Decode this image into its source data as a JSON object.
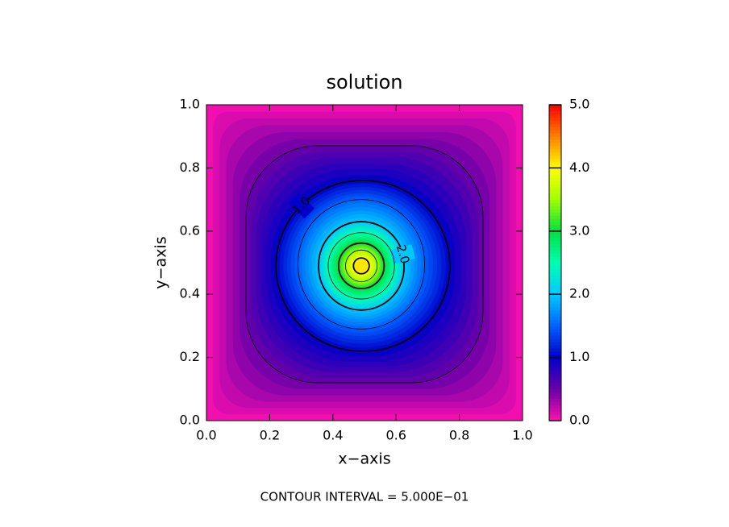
{
  "chart_data": {
    "type": "contour",
    "title": "solution",
    "x_label": "x−axis",
    "y_label": "y−axis",
    "note": "CONTOUR INTERVAL = 5.000E−01",
    "xlim": [
      0,
      1
    ],
    "ylim": [
      0,
      1
    ],
    "xticks": [
      {
        "value": 0,
        "label": "0.0"
      },
      {
        "value": 0.2,
        "label": "0.2"
      },
      {
        "value": 0.4,
        "label": "0.4"
      },
      {
        "value": 0.6,
        "label": "0.6"
      },
      {
        "value": 0.8,
        "label": "0.8"
      },
      {
        "value": 1,
        "label": "1.0"
      }
    ],
    "yticks": [
      {
        "value": 0,
        "label": "0.0"
      },
      {
        "value": 0.2,
        "label": "0.2"
      },
      {
        "value": 0.4,
        "label": "0.4"
      },
      {
        "value": 0.6,
        "label": "0.6"
      },
      {
        "value": 0.8,
        "label": "0.8"
      },
      {
        "value": 1,
        "label": "1.0"
      }
    ],
    "clim": [
      0,
      5
    ],
    "cticks": [
      {
        "value": 0,
        "label": "0.0"
      },
      {
        "value": 1,
        "label": "1.0"
      },
      {
        "value": 2,
        "label": "2.0"
      },
      {
        "value": 3,
        "label": "3.0"
      },
      {
        "value": 4,
        "label": "4.0"
      },
      {
        "value": 5,
        "label": "5.0"
      }
    ],
    "colormap": [
      "#ff10b0",
      "#6a00a8",
      "#0000c8",
      "#0060ff",
      "#00c8ff",
      "#00ffb0",
      "#00e040",
      "#a0ff00",
      "#ffff00",
      "#ff8000",
      "#ff0000"
    ],
    "contours": [
      {
        "level": 0.5,
        "xmin": 0.125,
        "xmax": 0.875,
        "ymin": 0.12,
        "ymax": 0.87
      },
      {
        "level": 1.0,
        "label": "1.0",
        "xmin": 0.22,
        "xmax": 0.77,
        "ymin": 0.22,
        "ymax": 0.76
      },
      {
        "level": 1.5,
        "xmin": 0.29,
        "xmax": 0.69,
        "ymin": 0.29,
        "ymax": 0.7
      },
      {
        "level": 2.0,
        "label": "2.0",
        "xmin": 0.355,
        "xmax": 0.625,
        "ymin": 0.35,
        "ymax": 0.63
      },
      {
        "level": 2.5,
        "xmin": 0.385,
        "xmax": 0.595,
        "ymin": 0.385,
        "ymax": 0.595
      },
      {
        "level": 3.0,
        "xmin": 0.418,
        "xmax": 0.562,
        "ymin": 0.418,
        "ymax": 0.562
      },
      {
        "level": 3.5,
        "xmin": 0.44,
        "xmax": 0.54,
        "ymin": 0.44,
        "ymax": 0.54
      },
      {
        "level": 4.0,
        "xmin": 0.465,
        "xmax": 0.515,
        "ymin": 0.465,
        "ymax": 0.515
      }
    ]
  }
}
